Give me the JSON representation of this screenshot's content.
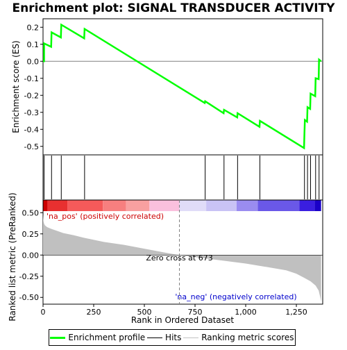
{
  "chart_data": {
    "type": "line",
    "title": "Enrichment plot: SIGNAL TRANSDUCER ACTIVITY",
    "xlabel": "Rank in Ordered Dataset",
    "ylabel_top": "Enrichment score (ES)",
    "ylabel_bottom": "Ranked list metric (PreRanked)",
    "x_ticks": [
      0,
      250,
      500,
      750,
      1000,
      1250
    ],
    "x_tick_labels": [
      "0",
      "250",
      "500",
      "750",
      "1,000",
      "1,250"
    ],
    "xlim": [
      0,
      1380
    ],
    "es_ylim": [
      -0.55,
      0.25
    ],
    "es_ticks": [
      0.2,
      0.1,
      0.0,
      -0.1,
      -0.2,
      -0.3,
      -0.4,
      -0.5
    ],
    "es_tick_labels": [
      "0.2",
      "0.1",
      "0.0",
      "-0.1",
      "-0.2",
      "-0.3",
      "-0.4",
      "-0.5"
    ],
    "metric_ylim": [
      -0.58,
      0.65
    ],
    "metric_ticks": [
      0.5,
      0.25,
      0.0,
      -0.25,
      -0.5
    ],
    "metric_tick_labels": [
      "0.50",
      "0.25",
      "0.00",
      "-0.25",
      "-0.50"
    ],
    "hits": [
      5,
      42,
      90,
      205,
      800,
      893,
      960,
      1070,
      1290,
      1305,
      1320,
      1345,
      1362
    ],
    "es_profile": {
      "x": [
        0,
        5,
        5,
        40,
        42,
        88,
        90,
        203,
        205,
        798,
        800,
        891,
        893,
        958,
        960,
        1068,
        1070,
        1288,
        1290,
        1292,
        1303,
        1305,
        1318,
        1320,
        1343,
        1345,
        1360,
        1362,
        1372
      ],
      "y": [
        0.0,
        0.0,
        0.105,
        0.085,
        0.17,
        0.14,
        0.215,
        0.135,
        0.19,
        -0.245,
        -0.235,
        -0.305,
        -0.285,
        -0.33,
        -0.305,
        -0.385,
        -0.35,
        -0.51,
        -0.42,
        -0.345,
        -0.355,
        -0.27,
        -0.28,
        -0.19,
        -0.205,
        -0.1,
        -0.105,
        0.01,
        0.0
      ]
    },
    "metric_profile": {
      "x": [
        0,
        2,
        5,
        10,
        20,
        40,
        70,
        100,
        150,
        200,
        300,
        400,
        500,
        600,
        673,
        800,
        900,
        1000,
        1100,
        1200,
        1250,
        1290,
        1320,
        1345,
        1360,
        1368,
        1372
      ],
      "y": [
        0.48,
        0.4,
        0.37,
        0.35,
        0.33,
        0.31,
        0.285,
        0.26,
        0.235,
        0.205,
        0.155,
        0.12,
        0.075,
        0.03,
        0.0,
        -0.04,
        -0.07,
        -0.1,
        -0.14,
        -0.18,
        -0.22,
        -0.27,
        -0.31,
        -0.36,
        -0.42,
        -0.5,
        -0.55
      ]
    },
    "gradient_bands": [
      {
        "x0": 0,
        "x1": 22,
        "color": "#cc0000"
      },
      {
        "x0": 22,
        "x1": 120,
        "color": "#e83030"
      },
      {
        "x0": 120,
        "x1": 295,
        "color": "#f55a5a"
      },
      {
        "x0": 295,
        "x1": 410,
        "color": "#f77f7f"
      },
      {
        "x0": 410,
        "x1": 525,
        "color": "#f8a0a0"
      },
      {
        "x0": 525,
        "x1": 673,
        "color": "#fac0dd"
      },
      {
        "x0": 673,
        "x1": 805,
        "color": "#e0dcf8"
      },
      {
        "x0": 805,
        "x1": 955,
        "color": "#c9c3f5"
      },
      {
        "x0": 955,
        "x1": 1060,
        "color": "#9a8cf0"
      },
      {
        "x0": 1060,
        "x1": 1265,
        "color": "#6a58e8"
      },
      {
        "x0": 1265,
        "x1": 1340,
        "color": "#3a1ee0"
      },
      {
        "x0": 1340,
        "x1": 1372,
        "color": "#1a00c8"
      }
    ],
    "zero_cross_rank": 673,
    "annotations": {
      "na_pos": "'na_pos' (positively correlated)",
      "na_neg": "'na_neg' (negatively correlated)",
      "zero_cross": "Zero cross at 673"
    },
    "colors": {
      "es_line": "#00ff00",
      "hit_line": "#000000",
      "metric_fill": "#c0c0c0",
      "zero_line": "#808080",
      "na_pos_text": "#cc0000",
      "na_neg_text": "#0000cc"
    },
    "legend": {
      "placement": "bottom",
      "items": [
        {
          "label": "Enrichment profile",
          "color": "#00ff00"
        },
        {
          "label": "Hits",
          "color": "#000000"
        },
        {
          "label": "Ranking metric scores",
          "color": "#c0c0c0"
        }
      ]
    }
  }
}
